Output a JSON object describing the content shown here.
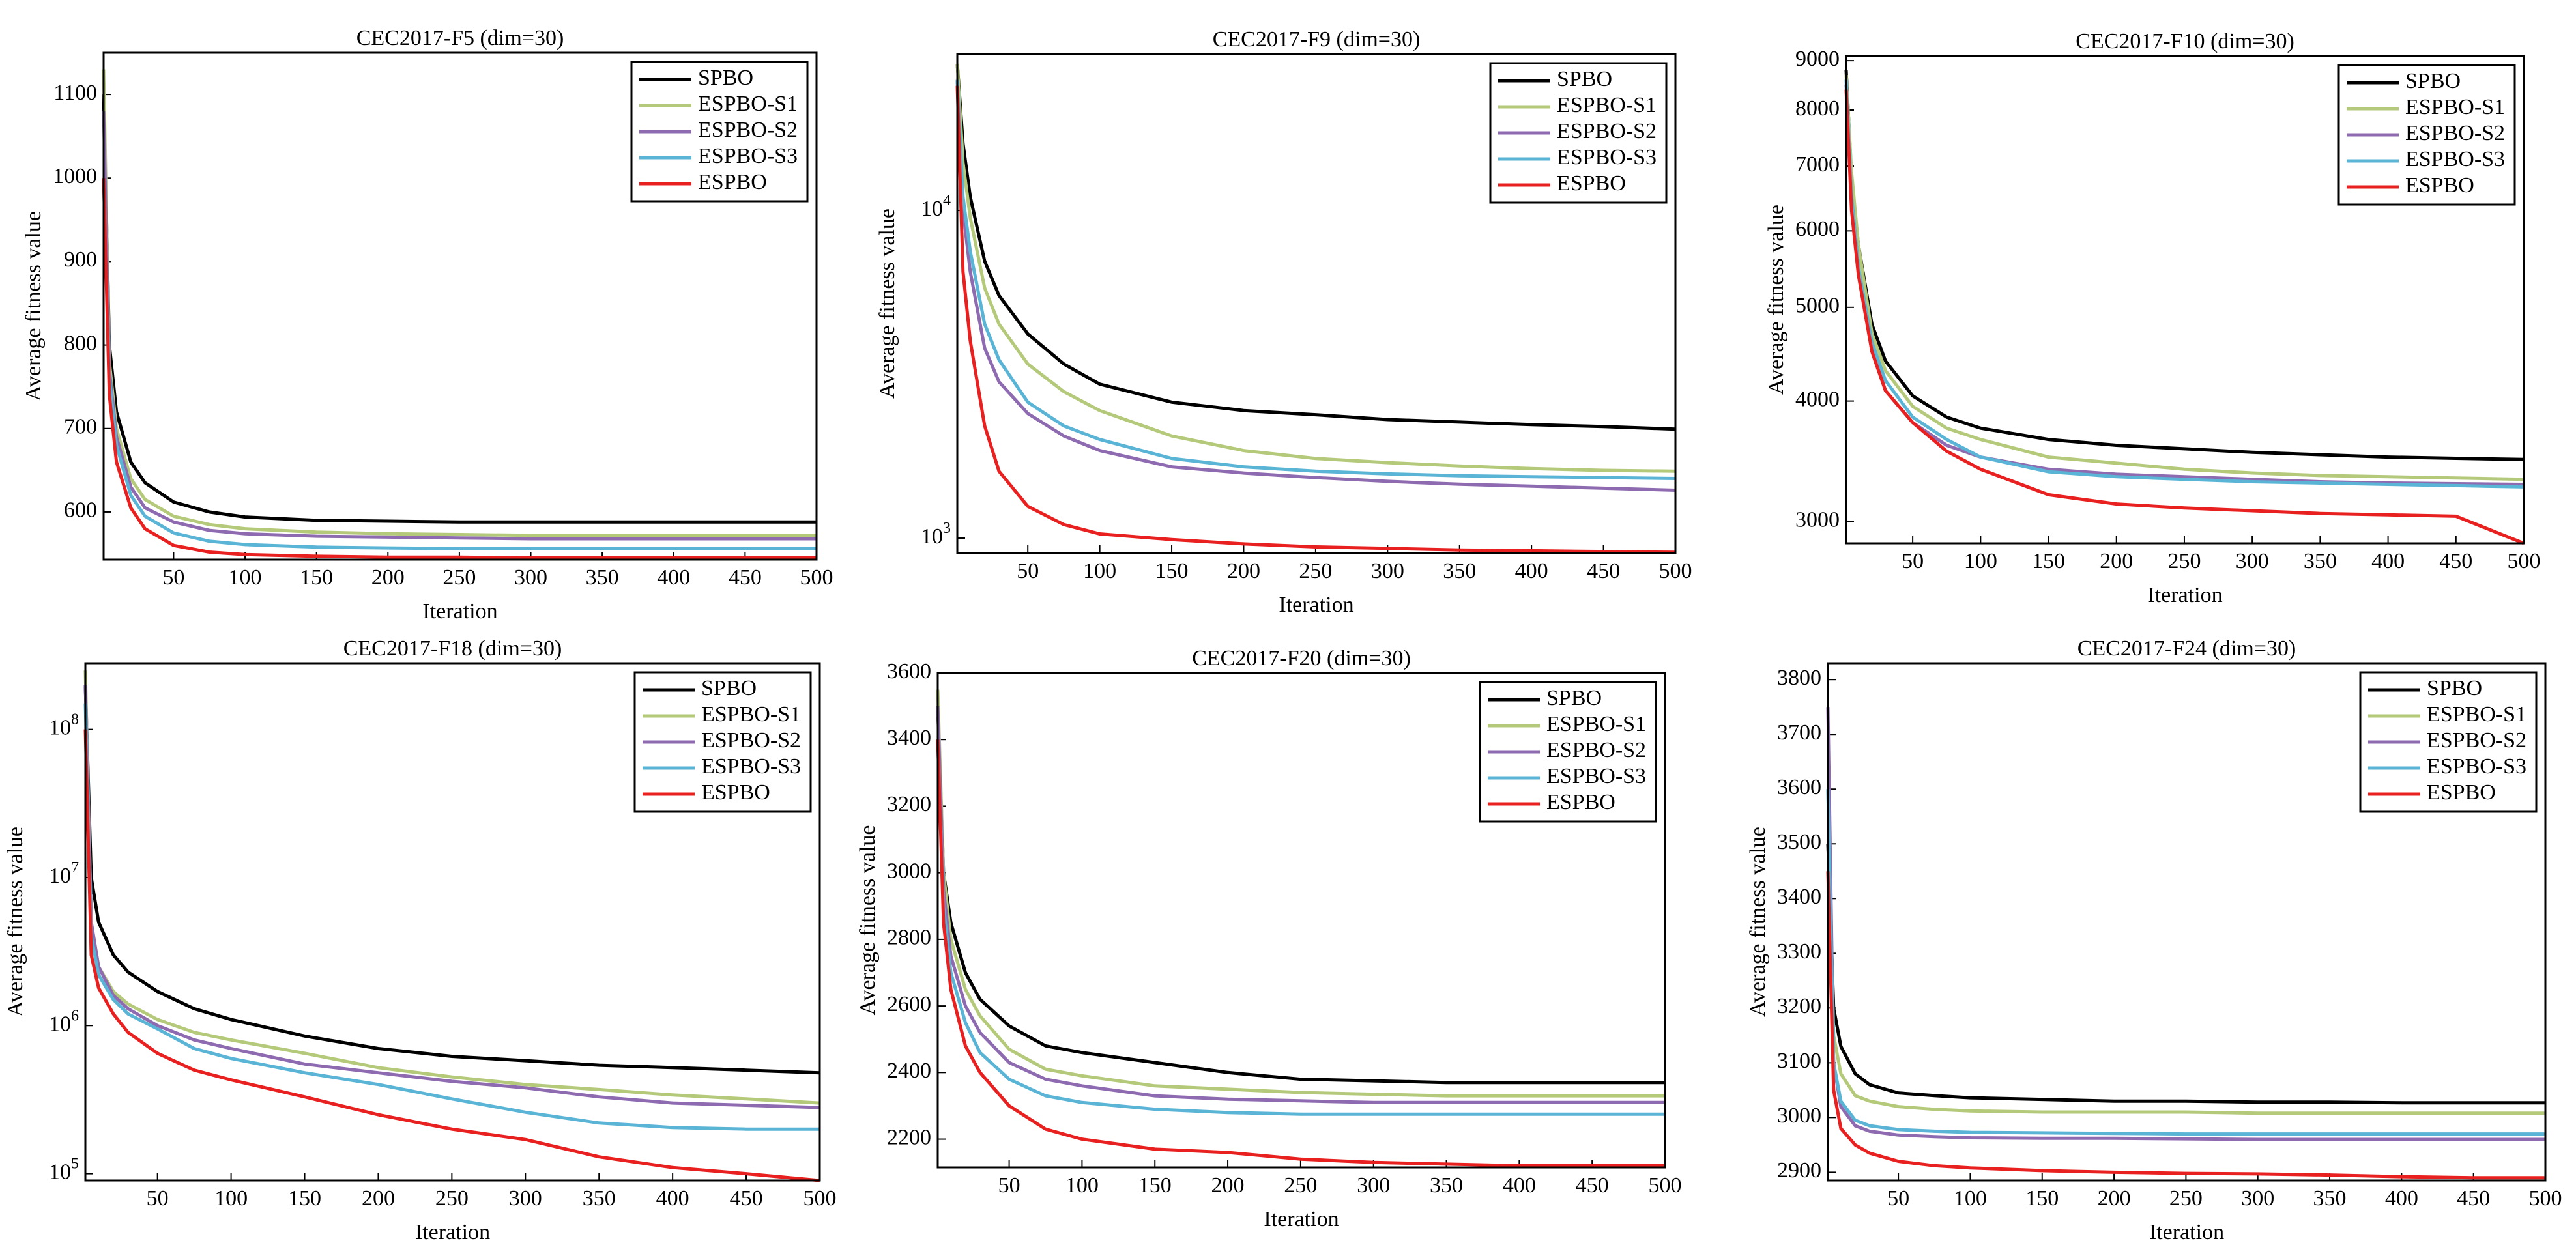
{
  "chart_data": [
    {
      "type": "line",
      "title": "CEC2017-F5 (dim=30)",
      "xlabel": "Iteration",
      "ylabel": "Average fitness value",
      "log_scale": false,
      "legend": "upper right",
      "x": [
        1,
        5,
        10,
        20,
        30,
        50,
        75,
        100,
        150,
        200,
        250,
        300,
        350,
        400,
        450,
        500
      ],
      "xlim": [
        1,
        500
      ],
      "xticks": [
        50,
        100,
        150,
        200,
        250,
        300,
        350,
        400,
        450,
        500
      ],
      "ylim": [
        543,
        1150
      ],
      "yticks": [
        600,
        700,
        800,
        900,
        1000,
        1100
      ],
      "series": [
        {
          "name": "SPBO",
          "color": "#000000",
          "values": [
            1100,
            800,
            720,
            660,
            635,
            612,
            600,
            594,
            590,
            589,
            588,
            588,
            588,
            588,
            588,
            588
          ]
        },
        {
          "name": "ESPBO-S1",
          "color": "#b5c97a",
          "values": [
            1130,
            780,
            700,
            640,
            615,
            595,
            585,
            580,
            576,
            574,
            573,
            572,
            572,
            572,
            572,
            572
          ]
        },
        {
          "name": "ESPBO-S2",
          "color": "#8e6bb0",
          "values": [
            1080,
            770,
            690,
            630,
            605,
            588,
            578,
            574,
            571,
            570,
            569,
            568,
            568,
            568,
            568,
            568
          ]
        },
        {
          "name": "ESPBO-S3",
          "color": "#5ab4d6",
          "values": [
            1000,
            760,
            680,
            620,
            595,
            575,
            565,
            561,
            558,
            557,
            556,
            556,
            556,
            556,
            556,
            556
          ]
        },
        {
          "name": "ESPBO",
          "color": "#e8201f",
          "values": [
            1000,
            740,
            660,
            605,
            580,
            560,
            552,
            549,
            547,
            546,
            546,
            545,
            545,
            545,
            545,
            545
          ]
        }
      ]
    },
    {
      "type": "line",
      "title": "CEC2017-F9 (dim=30)",
      "xlabel": "Iteration",
      "ylabel": "Average fitness value",
      "log_scale": true,
      "legend": "upper right",
      "x": [
        1,
        5,
        10,
        20,
        30,
        50,
        75,
        100,
        150,
        200,
        250,
        300,
        350,
        400,
        450,
        500
      ],
      "xlim": [
        1,
        500
      ],
      "xticks": [
        50,
        100,
        150,
        200,
        250,
        300,
        350,
        400,
        450,
        500
      ],
      "ylim": [
        900,
        30000
      ],
      "yticks": [
        {
          "value": 1000,
          "label": "10^3"
        },
        {
          "value": 10000,
          "label": "10^4"
        }
      ],
      "series": [
        {
          "name": "SPBO",
          "color": "#000000",
          "values": [
            28000,
            16000,
            11000,
            7000,
            5500,
            4200,
            3400,
            2950,
            2600,
            2450,
            2380,
            2300,
            2260,
            2220,
            2190,
            2150
          ]
        },
        {
          "name": "ESPBO-S1",
          "color": "#b5c97a",
          "values": [
            28000,
            14000,
            9500,
            5800,
            4500,
            3400,
            2800,
            2450,
            2050,
            1850,
            1750,
            1700,
            1660,
            1630,
            1610,
            1600
          ]
        },
        {
          "name": "ESPBO-S2",
          "color": "#8e6bb0",
          "values": [
            25000,
            10000,
            6500,
            3800,
            3000,
            2400,
            2050,
            1850,
            1650,
            1580,
            1530,
            1490,
            1460,
            1440,
            1420,
            1400
          ]
        },
        {
          "name": "ESPBO-S3",
          "color": "#5ab4d6",
          "values": [
            25000,
            11000,
            7500,
            4500,
            3500,
            2600,
            2200,
            2000,
            1750,
            1650,
            1600,
            1570,
            1550,
            1540,
            1530,
            1520
          ]
        },
        {
          "name": "ESPBO",
          "color": "#e8201f",
          "values": [
            24000,
            6500,
            4000,
            2200,
            1600,
            1250,
            1100,
            1030,
            990,
            960,
            940,
            930,
            920,
            915,
            910,
            905
          ]
        }
      ]
    },
    {
      "type": "line",
      "title": "CEC2017-F10 (dim=30)",
      "xlabel": "Iteration",
      "ylabel": "Average fitness value",
      "log_scale": true,
      "legend": "upper right",
      "x": [
        1,
        5,
        10,
        20,
        30,
        50,
        75,
        100,
        150,
        200,
        250,
        300,
        350,
        400,
        450,
        500
      ],
      "xlim": [
        1,
        500
      ],
      "xticks": [
        50,
        100,
        150,
        200,
        250,
        300,
        350,
        400,
        450,
        500
      ],
      "ylim": [
        2850,
        9100
      ],
      "yticks": [
        3000,
        4000,
        5000,
        6000,
        7000,
        8000,
        9000
      ],
      "series": [
        {
          "name": "SPBO",
          "color": "#000000",
          "values": [
            8800,
            6800,
            5800,
            4800,
            4400,
            4050,
            3850,
            3750,
            3650,
            3600,
            3570,
            3540,
            3520,
            3500,
            3490,
            3480
          ]
        },
        {
          "name": "ESPBO-S1",
          "color": "#b5c97a",
          "values": [
            8700,
            6900,
            5800,
            4700,
            4300,
            3950,
            3750,
            3650,
            3500,
            3450,
            3400,
            3370,
            3350,
            3340,
            3330,
            3320
          ]
        },
        {
          "name": "ESPBO-S2",
          "color": "#8e6bb0",
          "values": [
            8500,
            6500,
            5500,
            4500,
            4100,
            3800,
            3600,
            3500,
            3400,
            3360,
            3340,
            3320,
            3300,
            3290,
            3285,
            3280
          ]
        },
        {
          "name": "ESPBO-S3",
          "color": "#5ab4d6",
          "values": [
            8600,
            6500,
            5500,
            4600,
            4200,
            3850,
            3650,
            3500,
            3380,
            3340,
            3320,
            3300,
            3290,
            3280,
            3270,
            3260
          ]
        },
        {
          "name": "ESPBO",
          "color": "#e8201f",
          "values": [
            8400,
            6300,
            5400,
            4500,
            4100,
            3800,
            3550,
            3400,
            3200,
            3130,
            3100,
            3080,
            3060,
            3050,
            3040,
            2850
          ]
        }
      ]
    },
    {
      "type": "line",
      "title": "CEC2017-F18 (dim=30)",
      "xlabel": "Iteration",
      "ylabel": "Average fitness value",
      "log_scale": true,
      "legend": "upper right",
      "x": [
        1,
        5,
        10,
        20,
        30,
        50,
        75,
        100,
        150,
        200,
        250,
        300,
        350,
        400,
        450,
        500
      ],
      "xlim": [
        1,
        500
      ],
      "xticks": [
        50,
        100,
        150,
        200,
        250,
        300,
        350,
        400,
        450,
        500
      ],
      "ylim": [
        90000,
        280000000
      ],
      "yticks": [
        {
          "value": 100000,
          "label": "10^5"
        },
        {
          "value": 1000000,
          "label": "10^6"
        },
        {
          "value": 10000000,
          "label": "10^7"
        },
        {
          "value": 100000000,
          "label": "10^8"
        }
      ],
      "series": [
        {
          "name": "SPBO",
          "color": "#000000",
          "values": [
            200000000,
            10000000,
            5000000,
            3000000,
            2300000,
            1700000,
            1300000,
            1100000,
            850000,
            700000,
            620000,
            580000,
            540000,
            520000,
            500000,
            480000
          ]
        },
        {
          "name": "ESPBO-S1",
          "color": "#b5c97a",
          "values": [
            250000000,
            5000000,
            2500000,
            1700000,
            1400000,
            1100000,
            900000,
            800000,
            650000,
            520000,
            450000,
            400000,
            370000,
            340000,
            320000,
            300000
          ]
        },
        {
          "name": "ESPBO-S2",
          "color": "#8e6bb0",
          "values": [
            200000000,
            5000000,
            2500000,
            1600000,
            1300000,
            1000000,
            800000,
            700000,
            550000,
            480000,
            420000,
            380000,
            330000,
            300000,
            290000,
            280000
          ]
        },
        {
          "name": "ESPBO-S3",
          "color": "#5ab4d6",
          "values": [
            150000000,
            4000000,
            2200000,
            1500000,
            1200000,
            950000,
            700000,
            600000,
            480000,
            400000,
            320000,
            260000,
            220000,
            205000,
            200000,
            200000
          ]
        },
        {
          "name": "ESPBO",
          "color": "#e8201f",
          "values": [
            100000000,
            3000000,
            1800000,
            1200000,
            900000,
            650000,
            500000,
            430000,
            330000,
            250000,
            200000,
            170000,
            130000,
            110000,
            100000,
            90000
          ]
        }
      ]
    },
    {
      "type": "line",
      "title": "CEC2017-F20 (dim=30)",
      "xlabel": "Iteration",
      "ylabel": "Average fitness value",
      "log_scale": false,
      "legend": "upper right",
      "x": [
        1,
        5,
        10,
        20,
        30,
        50,
        75,
        100,
        150,
        200,
        250,
        300,
        350,
        400,
        450,
        500
      ],
      "xlim": [
        1,
        500
      ],
      "xticks": [
        50,
        100,
        150,
        200,
        250,
        300,
        350,
        400,
        450,
        500
      ],
      "ylim": [
        2115,
        3600
      ],
      "yticks": [
        2200,
        2400,
        2600,
        2800,
        3000,
        3200,
        3400,
        3600
      ],
      "series": [
        {
          "name": "SPBO",
          "color": "#000000",
          "values": [
            3500,
            3000,
            2850,
            2700,
            2620,
            2540,
            2480,
            2460,
            2430,
            2400,
            2380,
            2375,
            2370,
            2370,
            2370,
            2370
          ]
        },
        {
          "name": "ESPBO-S1",
          "color": "#b5c97a",
          "values": [
            3550,
            3000,
            2800,
            2650,
            2570,
            2470,
            2410,
            2390,
            2360,
            2350,
            2340,
            2335,
            2330,
            2330,
            2330,
            2330
          ]
        },
        {
          "name": "ESPBO-S2",
          "color": "#8e6bb0",
          "values": [
            3500,
            2950,
            2750,
            2600,
            2520,
            2430,
            2380,
            2360,
            2330,
            2320,
            2315,
            2310,
            2310,
            2310,
            2310,
            2310
          ]
        },
        {
          "name": "ESPBO-S3",
          "color": "#5ab4d6",
          "values": [
            3400,
            2900,
            2700,
            2550,
            2460,
            2380,
            2330,
            2310,
            2290,
            2280,
            2275,
            2275,
            2275,
            2275,
            2275,
            2275
          ]
        },
        {
          "name": "ESPBO",
          "color": "#e8201f",
          "values": [
            3400,
            2850,
            2650,
            2480,
            2400,
            2300,
            2230,
            2200,
            2170,
            2160,
            2140,
            2130,
            2125,
            2120,
            2120,
            2120
          ]
        }
      ]
    },
    {
      "type": "line",
      "title": "CEC2017-F24 (dim=30)",
      "xlabel": "Iteration",
      "ylabel": "Average fitness value",
      "log_scale": false,
      "legend": "upper right",
      "x": [
        1,
        5,
        10,
        20,
        30,
        50,
        75,
        100,
        150,
        200,
        250,
        300,
        350,
        400,
        450,
        500
      ],
      "xlim": [
        1,
        500
      ],
      "xticks": [
        50,
        100,
        150,
        200,
        250,
        300,
        350,
        400,
        450,
        500
      ],
      "ylim": [
        2885,
        3830
      ],
      "yticks": [
        2900,
        3000,
        3100,
        3200,
        3300,
        3400,
        3500,
        3600,
        3700,
        3800
      ],
      "series": [
        {
          "name": "SPBO",
          "color": "#000000",
          "values": [
            3500,
            3200,
            3130,
            3080,
            3060,
            3045,
            3040,
            3036,
            3033,
            3030,
            3030,
            3028,
            3028,
            3027,
            3027,
            3027
          ]
        },
        {
          "name": "ESPBO-S1",
          "color": "#b5c97a",
          "values": [
            3600,
            3150,
            3080,
            3040,
            3030,
            3020,
            3015,
            3012,
            3010,
            3010,
            3010,
            3008,
            3008,
            3008,
            3008,
            3008
          ]
        },
        {
          "name": "ESPBO-S2",
          "color": "#8e6bb0",
          "values": [
            3750,
            3100,
            3020,
            2985,
            2975,
            2968,
            2965,
            2963,
            2962,
            2962,
            2961,
            2960,
            2960,
            2960,
            2960,
            2960
          ]
        },
        {
          "name": "ESPBO-S3",
          "color": "#5ab4d6",
          "values": [
            3600,
            3100,
            3030,
            2995,
            2985,
            2978,
            2975,
            2973,
            2972,
            2971,
            2970,
            2970,
            2970,
            2970,
            2970,
            2970
          ]
        },
        {
          "name": "ESPBO",
          "color": "#e8201f",
          "values": [
            3450,
            3050,
            2980,
            2950,
            2935,
            2920,
            2912,
            2908,
            2903,
            2900,
            2898,
            2897,
            2895,
            2892,
            2890,
            2890
          ]
        }
      ]
    }
  ]
}
